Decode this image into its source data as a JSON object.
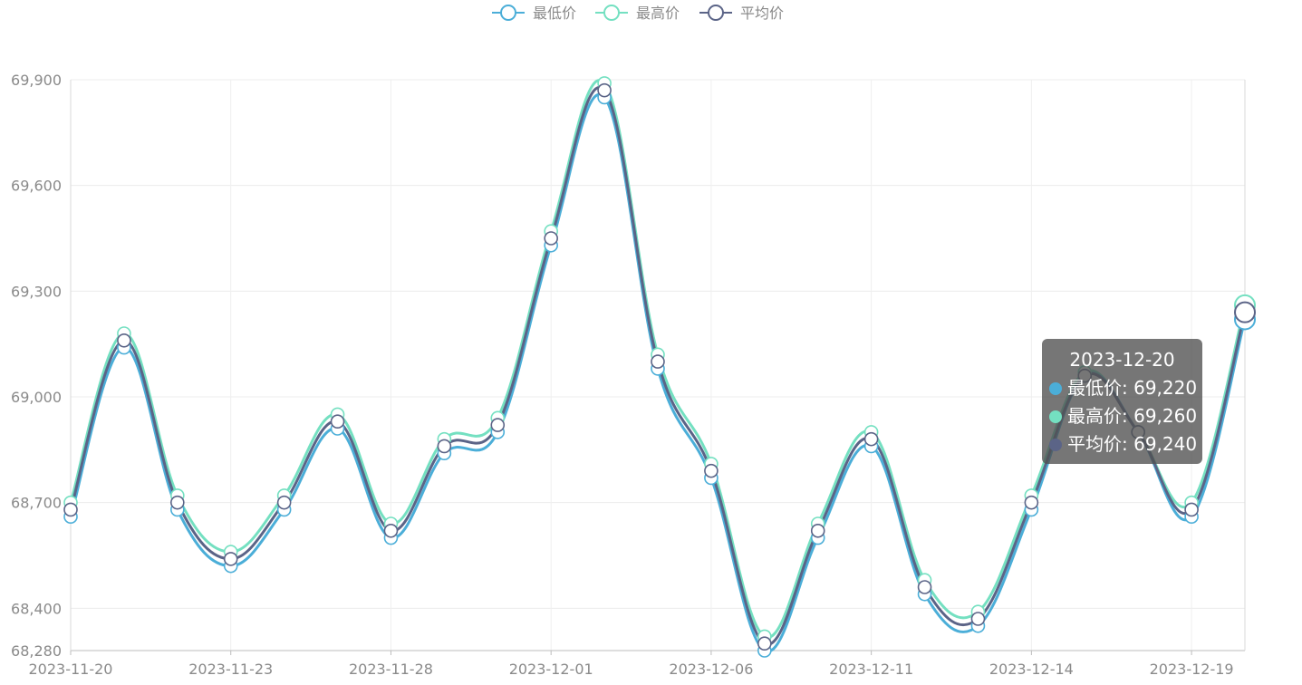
{
  "chart_data": {
    "type": "line",
    "title": "",
    "xlabel": "",
    "ylabel": "",
    "x": [
      "2023-11-20",
      "2023-11-21",
      "2023-11-22",
      "2023-11-23",
      "2023-11-24",
      "2023-11-27",
      "2023-11-28",
      "2023-11-29",
      "2023-11-30",
      "2023-12-01",
      "2023-12-04",
      "2023-12-05",
      "2023-12-06",
      "2023-12-07",
      "2023-12-08",
      "2023-12-11",
      "2023-12-12",
      "2023-12-13",
      "2023-12-14",
      "2023-12-15",
      "2023-12-18",
      "2023-12-19",
      "2023-12-20"
    ],
    "xtick_labels": [
      "2023-11-20",
      "2023-11-23",
      "2023-11-28",
      "2023-12-01",
      "2023-12-06",
      "2023-12-11",
      "2023-12-14",
      "2023-12-19"
    ],
    "ylim": [
      68280,
      69900
    ],
    "yticks": [
      68280,
      68400,
      68700,
      69000,
      69300,
      69600,
      69900
    ],
    "ytick_labels": [
      "68,280",
      "68,400",
      "68,700",
      "69,000",
      "69,300",
      "69,600",
      "69,900"
    ],
    "grid": true,
    "legend": {
      "position": "top-center",
      "items": [
        {
          "name": "最低价",
          "color": "#4BAED8"
        },
        {
          "name": "最高价",
          "color": "#74E0C1"
        },
        {
          "name": "平均价",
          "color": "#5B6487"
        }
      ]
    },
    "series": [
      {
        "name": "最低价",
        "color": "#4BAED8",
        "values": [
          68660,
          69140,
          68680,
          68520,
          68680,
          68910,
          68600,
          68840,
          68900,
          69430,
          69850,
          69080,
          68770,
          68280,
          68600,
          68860,
          68440,
          68350,
          68680,
          69060,
          68900,
          68660,
          69220
        ]
      },
      {
        "name": "最高价",
        "color": "#74E0C1",
        "values": [
          68700,
          69180,
          68720,
          68560,
          68720,
          68950,
          68640,
          68880,
          68940,
          69470,
          69890,
          69120,
          68810,
          68320,
          68640,
          68900,
          68480,
          68390,
          68720,
          69070,
          68900,
          68700,
          69260
        ]
      },
      {
        "name": "平均价",
        "color": "#5B6487",
        "values": [
          68680,
          69160,
          68700,
          68540,
          68700,
          68930,
          68620,
          68860,
          68920,
          69450,
          69870,
          69100,
          68790,
          68300,
          68620,
          68880,
          68460,
          68370,
          68700,
          69060,
          68900,
          68680,
          69240
        ]
      }
    ],
    "tooltip": {
      "title": "2023-12-20",
      "rows": [
        {
          "label": "最低价: 69,220",
          "color": "#4BAED8"
        },
        {
          "label": "最高价: 69,260",
          "color": "#74E0C1"
        },
        {
          "label": "平均价: 69,240",
          "color": "#5B6487"
        }
      ]
    }
  }
}
